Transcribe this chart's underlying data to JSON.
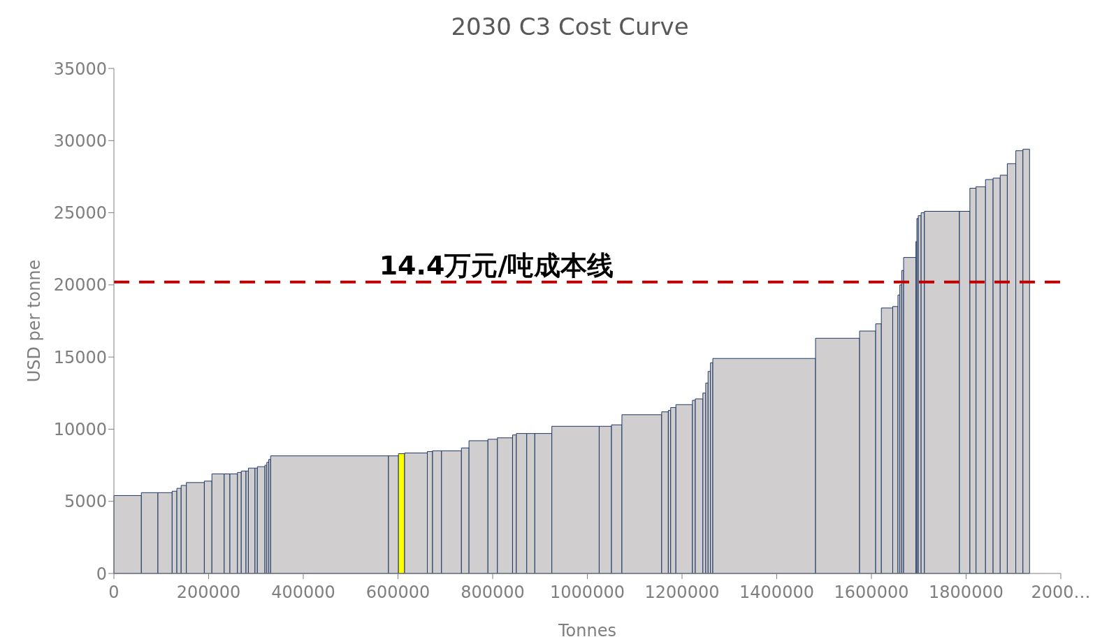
{
  "chart_data": {
    "type": "histogram",
    "title": "2030 C3 Cost Curve",
    "xlabel": "Tonnes",
    "ylabel": "USD per tonne",
    "bins": [
      0,
      58000,
      93000,
      123000,
      133000,
      142000,
      153000,
      191000,
      207000,
      233000,
      245000,
      261000,
      269000,
      279000,
      284000,
      298000,
      303000,
      319000,
      323000,
      327000,
      331000,
      580000,
      601000,
      614000,
      662000,
      673000,
      692000,
      734000,
      750000,
      790000,
      810000,
      842000,
      850000,
      872000,
      889000,
      925000,
      1025000,
      1051000,
      1073000,
      1157000,
      1171000,
      1176000,
      1187000,
      1222000,
      1228000,
      1244000,
      1250000,
      1255000,
      1260000,
      1265000,
      1482000,
      1575000,
      1609000,
      1621000,
      1645000,
      1656000,
      1660000,
      1664000,
      1668000,
      1694000,
      1696000,
      1699000,
      1705000,
      1712000,
      1786000,
      1808000,
      1821000,
      1841000,
      1857000,
      1872000,
      1887000,
      1905000,
      1920000,
      1934000
    ],
    "values": [
      5400,
      5600,
      5600,
      5700,
      5900,
      6100,
      6300,
      6400,
      6900,
      6900,
      6900,
      7000,
      7100,
      7100,
      7300,
      7300,
      7400,
      7500,
      7700,
      7900,
      8150,
      8150,
      8300,
      8350,
      8450,
      8500,
      8500,
      8700,
      9200,
      9300,
      9400,
      9600,
      9700,
      9700,
      9700,
      10200,
      10200,
      10300,
      11000,
      11200,
      11300,
      11500,
      11700,
      12000,
      12100,
      12500,
      13200,
      14000,
      14600,
      14900,
      16300,
      16800,
      17300,
      18400,
      18500,
      19300,
      20000,
      21000,
      21900,
      23000,
      24600,
      24800,
      25000,
      25100,
      25100,
      26700,
      26800,
      27300,
      27400,
      27600,
      28400,
      29300,
      29400
    ],
    "colors": [
      "#d0cece",
      "#d0cece",
      "#d0cece",
      "#d0cece",
      "#d0cece",
      "#d0cece",
      "#d0cece",
      "#d0cece",
      "#d0cece",
      "#d0cece",
      "#d0cece",
      "#d0cece",
      "#d0cece",
      "#d0cece",
      "#d0cece",
      "#d0cece",
      "#d0cece",
      "#d0cece",
      "#d0cece",
      "#d0cece",
      "#d0cece",
      "#d0cece",
      "#ffff00",
      "#d0cece",
      "#d0cece",
      "#d0cece",
      "#d0cece",
      "#d0cece",
      "#d0cece",
      "#d0cece",
      "#d0cece",
      "#d0cece",
      "#d0cece",
      "#d0cece",
      "#d0cece",
      "#d0cece",
      "#d0cece",
      "#d0cece",
      "#d0cece",
      "#d0cece",
      "#d0cece",
      "#d0cece",
      "#d0cece",
      "#d0cece",
      "#d0cece",
      "#d0cece",
      "#d0cece",
      "#d0cece",
      "#d0cece",
      "#d0cece",
      "#d0cece",
      "#d0cece",
      "#d0cece",
      "#d0cece",
      "#d0cece",
      "#d0cece",
      "#d0cece",
      "#d0cece",
      "#d0cece",
      "#d0cece",
      "#d0cece",
      "#d0cece",
      "#d0cece",
      "#d0cece",
      "#d0cece",
      "#d0cece",
      "#d0cece",
      "#d0cece",
      "#d0cece",
      "#d0cece",
      "#d0cece",
      "#d0cece",
      "#d0cece"
    ],
    "xlim": [
      0,
      2000000
    ],
    "xticks": [
      0,
      200000,
      400000,
      600000,
      800000,
      1000000,
      1200000,
      1400000,
      1600000,
      1800000,
      {
        "value": 2000000,
        "label": "2000…"
      }
    ],
    "ylim": [
      0,
      35000
    ],
    "yticks": [
      0,
      5000,
      10000,
      15000,
      20000,
      25000,
      30000,
      35000
    ],
    "ref_lines": [
      {
        "axis": "y",
        "value": 20200,
        "label": "14.4万元/吨成本线",
        "color": "#c00000",
        "line_style": "dashed"
      }
    ],
    "grid": false
  }
}
